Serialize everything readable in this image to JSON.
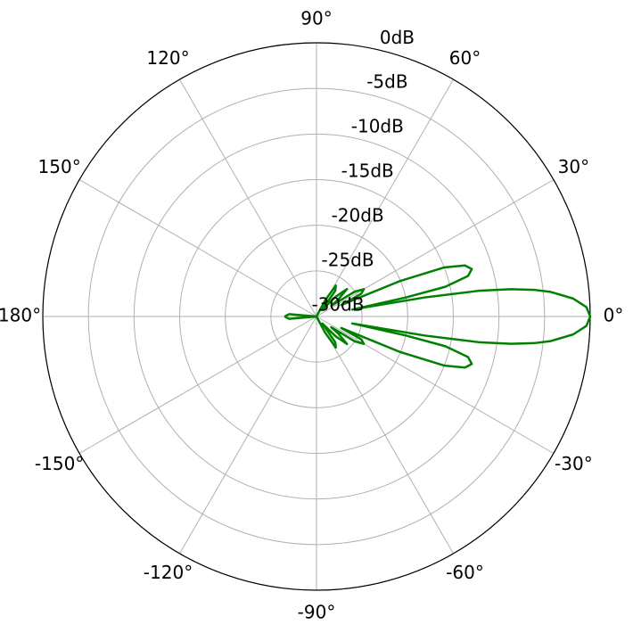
{
  "chart_data": {
    "type": "polar-line",
    "grid": true,
    "rlim": [
      -30,
      0
    ],
    "rticks": [
      {
        "value": -30,
        "label": "-30dB"
      },
      {
        "value": -25,
        "label": "-25dB"
      },
      {
        "value": -20,
        "label": "-20dB"
      },
      {
        "value": -15,
        "label": "-15dB"
      },
      {
        "value": -10,
        "label": "-10dB"
      },
      {
        "value": -5,
        "label": "-5dB"
      },
      {
        "value": 0,
        "label": "0dB"
      }
    ],
    "thetaticks": [
      {
        "value": 0,
        "label": "0°"
      },
      {
        "value": 30,
        "label": "30°"
      },
      {
        "value": 60,
        "label": "60°"
      },
      {
        "value": 90,
        "label": "90°"
      },
      {
        "value": 120,
        "label": "120°"
      },
      {
        "value": 150,
        "label": "150°"
      },
      {
        "value": 180,
        "label": "180°"
      },
      {
        "value": -150,
        "label": "-150°"
      },
      {
        "value": -120,
        "label": "-120°"
      },
      {
        "value": -90,
        "label": "-90°"
      },
      {
        "value": -60,
        "label": "-60°"
      },
      {
        "value": -30,
        "label": "-30°"
      }
    ],
    "color": "#008000",
    "x": [
      -180,
      -175,
      -170,
      -90,
      -66,
      -62,
      -58,
      -54,
      -50,
      -46,
      -42,
      -38,
      -36,
      -33,
      -30,
      -27,
      -25,
      -23,
      -21,
      -19,
      -17,
      -15,
      -13,
      -12,
      -11,
      -10,
      -9,
      -8,
      -7,
      -6,
      -4,
      -2,
      0,
      2,
      4,
      6,
      7,
      8,
      9,
      10,
      11,
      12,
      13,
      15,
      17,
      19,
      21,
      23,
      25,
      27,
      30,
      33,
      36,
      38,
      42,
      46,
      50,
      54,
      58,
      62,
      66,
      90,
      170,
      175,
      180
    ],
    "values": [
      -26.5,
      -27,
      -30,
      -30,
      -30,
      -28,
      -26,
      -26.5,
      -29,
      -27,
      -25.5,
      -27,
      -28,
      -25,
      -24,
      -24.5,
      -27,
      -20,
      -15,
      -12.8,
      -12.2,
      -12.8,
      -15.5,
      -20,
      -26,
      -18,
      -12,
      -8.5,
      -6,
      -4.2,
      -1.8,
      -0.4,
      0,
      -0.4,
      -1.8,
      -4.2,
      -6,
      -8.5,
      -12,
      -18,
      -26,
      -20,
      -15.5,
      -12.8,
      -12.2,
      -12.8,
      -15,
      -20,
      -27,
      -24.5,
      -24,
      -25,
      -28,
      -27,
      -25.5,
      -27,
      -29,
      -26.5,
      -26,
      -28,
      -30,
      -30,
      -30,
      -27,
      -26.5
    ]
  }
}
